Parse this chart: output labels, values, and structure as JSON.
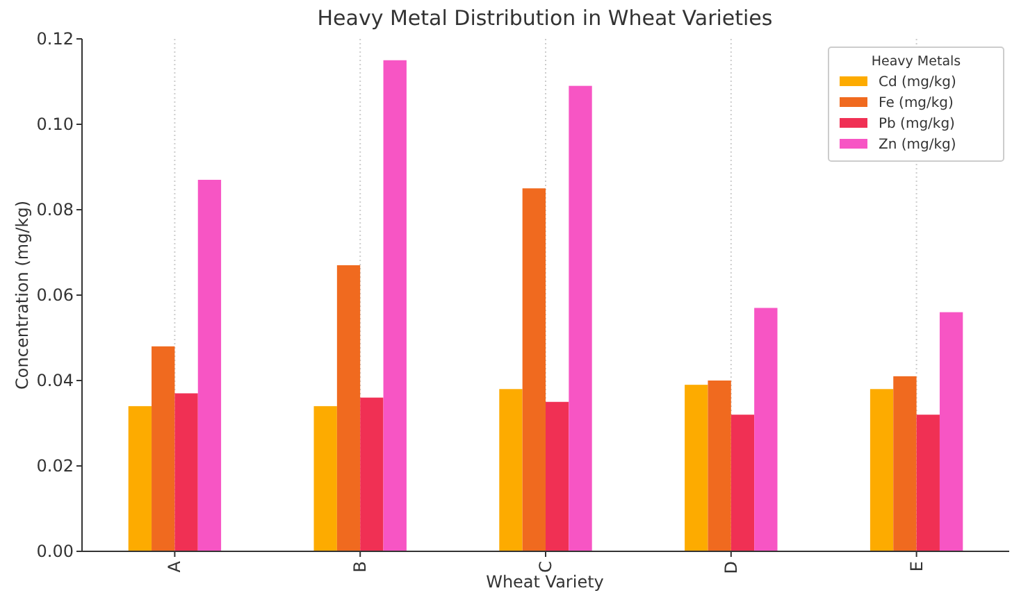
{
  "chart_data": {
    "type": "bar",
    "title": "Heavy Metal Distribution in Wheat Varieties",
    "xlabel": "Wheat Variety",
    "ylabel": "Concentration (mg/kg)",
    "legend_title": "Heavy Metals",
    "categories": [
      "A",
      "B",
      "C",
      "D",
      "E"
    ],
    "series": [
      {
        "name": "Cd (mg/kg)",
        "color": "#fdab00",
        "values": [
          0.034,
          0.034,
          0.038,
          0.039,
          0.038
        ]
      },
      {
        "name": "Fe (mg/kg)",
        "color": "#f06a1f",
        "values": [
          0.048,
          0.067,
          0.085,
          0.04,
          0.041
        ]
      },
      {
        "name": "Pb (mg/kg)",
        "color": "#f03054",
        "values": [
          0.037,
          0.036,
          0.035,
          0.032,
          0.032
        ]
      },
      {
        "name": "Zn (mg/kg)",
        "color": "#f755c4",
        "values": [
          0.087,
          0.115,
          0.109,
          0.057,
          0.056
        ]
      }
    ],
    "ylim": [
      0,
      0.12
    ],
    "yticks": [
      {
        "value": 0,
        "label": "0.00"
      },
      {
        "value": 0.02,
        "label": "0.02"
      },
      {
        "value": 0.04,
        "label": "0.04"
      },
      {
        "value": 0.06,
        "label": "0.06"
      },
      {
        "value": 0.08,
        "label": "0.08"
      },
      {
        "value": 0.1,
        "label": "0.10"
      },
      {
        "value": 0.12,
        "label": "0.12"
      }
    ],
    "grid": "x",
    "legend": "top right"
  }
}
